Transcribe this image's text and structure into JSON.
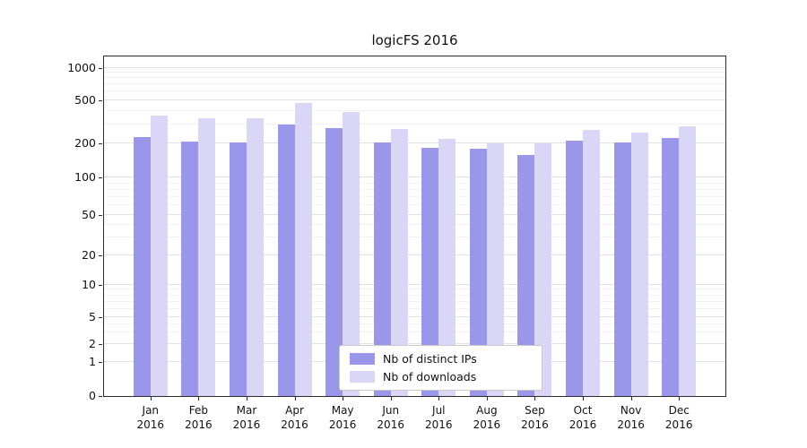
{
  "chart_data": {
    "type": "bar",
    "title": "logicFS 2016",
    "yscale": "symlog",
    "ylim": [
      0,
      1300
    ],
    "yticks": [
      0,
      1,
      2,
      5,
      10,
      20,
      50,
      100,
      200,
      500,
      1000
    ],
    "minor_grid_values": [
      3,
      4,
      6,
      7,
      8,
      9,
      30,
      40,
      60,
      70,
      80,
      90,
      300,
      400,
      600,
      700,
      800,
      900
    ],
    "grid": "horizontal major and minor gridlines, light gray",
    "categories": [
      "Jan",
      "Feb",
      "Mar",
      "Apr",
      "May",
      "Jun",
      "Jul",
      "Aug",
      "Sep",
      "Oct",
      "Nov",
      "Dec"
    ],
    "x_year_line": "2016",
    "legend_position": "lower center inside plot",
    "series": [
      {
        "name": "Nb of distinct IPs",
        "color": "#9a97ea",
        "values": [
          230,
          210,
          205,
          300,
          280,
          205,
          185,
          180,
          160,
          215,
          205,
          225
        ]
      },
      {
        "name": "Nb of downloads",
        "color": "#d9d6f6",
        "values": [
          360,
          345,
          340,
          470,
          390,
          275,
          220,
          200,
          200,
          270,
          255,
          290
        ]
      }
    ],
    "colors": {
      "background": "#ffffff",
      "axis": "#2b2b2b",
      "grid_major": "#e2e2e2",
      "grid_minor": "#f2f2f2",
      "text": "#111111"
    }
  }
}
